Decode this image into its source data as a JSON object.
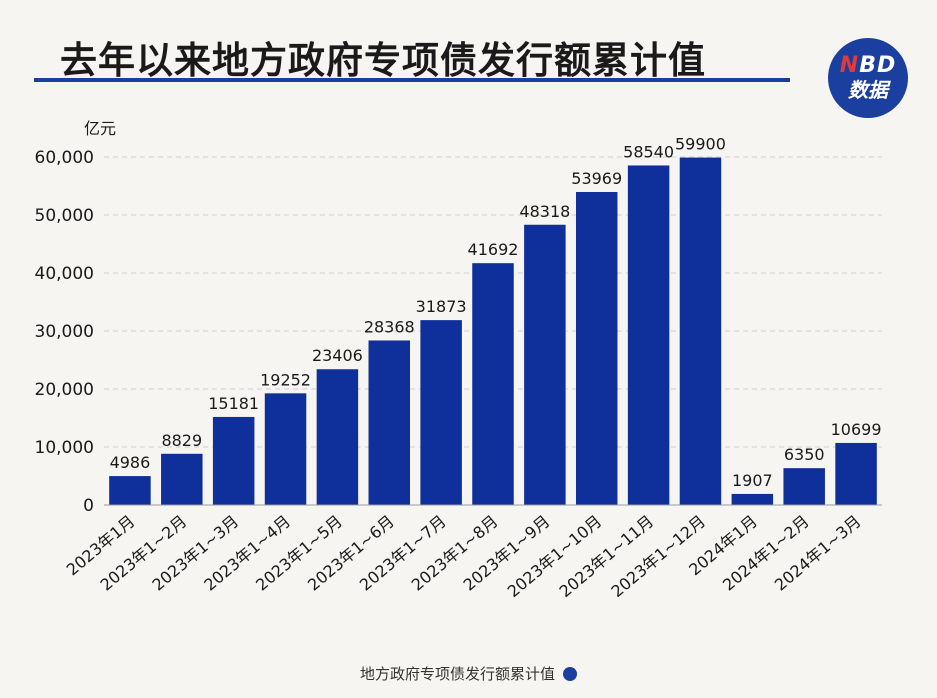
{
  "title": "去年以来地方政府专项债发行额累计值",
  "logo": {
    "line1_accent": "N",
    "line1_rest": "BD",
    "line2": "数据"
  },
  "legend": {
    "label": "地方政府专项债发行额累计值"
  },
  "colors": {
    "bar": "#0f2f9a",
    "accent": "#1a3f9e",
    "grid": "#cfcfcf"
  },
  "chart_data": {
    "type": "bar",
    "title": "去年以来地方政府专项债发行额累计值",
    "ylabel": "亿元",
    "xlabel": "",
    "ylim": [
      0,
      60000
    ],
    "yticks": [
      0,
      10000,
      20000,
      30000,
      40000,
      50000,
      60000
    ],
    "ytick_labels": [
      "0",
      "10,000",
      "20,000",
      "30,000",
      "40,000",
      "50,000",
      "60,000"
    ],
    "grid": true,
    "legend_position": "bottom-center",
    "categories": [
      "2023年1月",
      "2023年1~2月",
      "2023年1~3月",
      "2023年1~4月",
      "2023年1~5月",
      "2023年1~6月",
      "2023年1~7月",
      "2023年1~8月",
      "2023年1~9月",
      "2023年1~10月",
      "2023年1~11月",
      "2023年1~12月",
      "2024年1月",
      "2024年1~2月",
      "2024年1~3月"
    ],
    "series": [
      {
        "name": "地方政府专项债发行额累计值",
        "values": [
          4986,
          8829,
          15181,
          19252,
          23406,
          28368,
          31873,
          41692,
          48318,
          53969,
          58540,
          59900,
          1907,
          6350,
          10699
        ]
      }
    ]
  }
}
